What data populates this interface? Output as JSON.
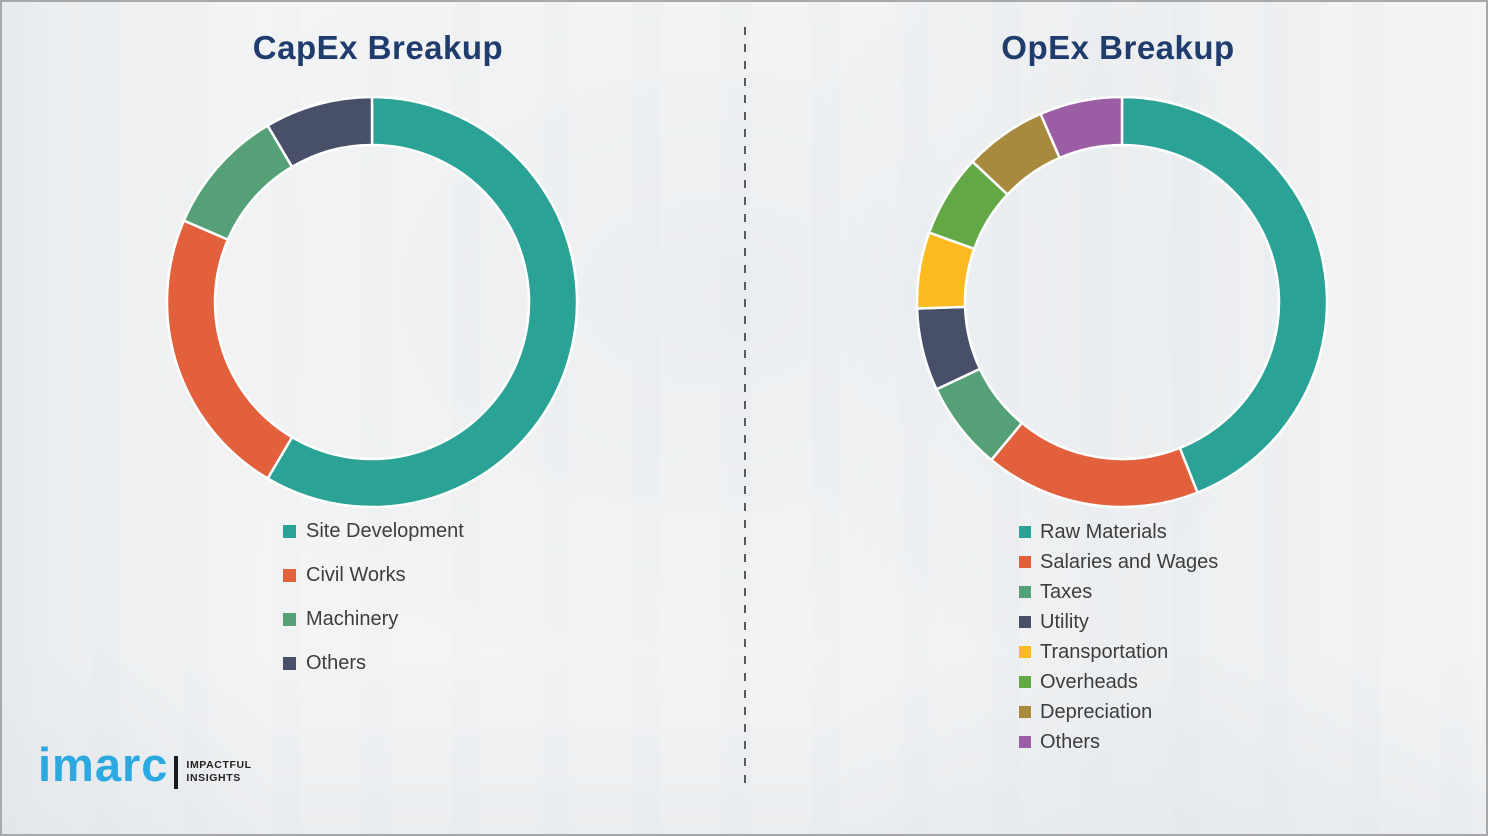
{
  "page": {
    "background": "#F3F4F5",
    "border_color": "#A6A8AA",
    "divider_color": "#58595B",
    "title_color": "#1F3C6D",
    "legend_text_color": "#3D3D3D"
  },
  "logo": {
    "brand": "imarc",
    "brand_color": "#2BA9E0",
    "bar_color": "#1A1A1A",
    "tagline_line1": "IMPACTFUL",
    "tagline_line2": "INSIGHTS",
    "tagline_color": "#231F20"
  },
  "chart_data": [
    {
      "type": "pie",
      "variant": "donut",
      "title": "CapEx Breakup",
      "legend_position": "below-left",
      "segments": [
        {
          "label": "Site Development",
          "value": 58.5,
          "color": "#2AA396"
        },
        {
          "label": "Civil Works",
          "value": 23.0,
          "color": "#E2613C"
        },
        {
          "label": "Machinery",
          "value": 10.0,
          "color": "#55A077"
        },
        {
          "label": "Others",
          "value": 8.5,
          "color": "#485069"
        }
      ]
    },
    {
      "type": "pie",
      "variant": "donut",
      "title": "OpEx Breakup",
      "legend_position": "below-left",
      "segments": [
        {
          "label": "Raw Materials",
          "value": 44.0,
          "color": "#2AA396"
        },
        {
          "label": "Salaries and Wages",
          "value": 17.0,
          "color": "#E2613C"
        },
        {
          "label": "Taxes",
          "value": 7.0,
          "color": "#55A077"
        },
        {
          "label": "Utility",
          "value": 6.5,
          "color": "#485069"
        },
        {
          "label": "Transportation",
          "value": 6.0,
          "color": "#FBBA1F"
        },
        {
          "label": "Overheads",
          "value": 6.5,
          "color": "#62A845"
        },
        {
          "label": "Depreciation",
          "value": 6.5,
          "color": "#A78A3D"
        },
        {
          "label": "Others",
          "value": 6.5,
          "color": "#9B5EA5"
        }
      ]
    }
  ]
}
